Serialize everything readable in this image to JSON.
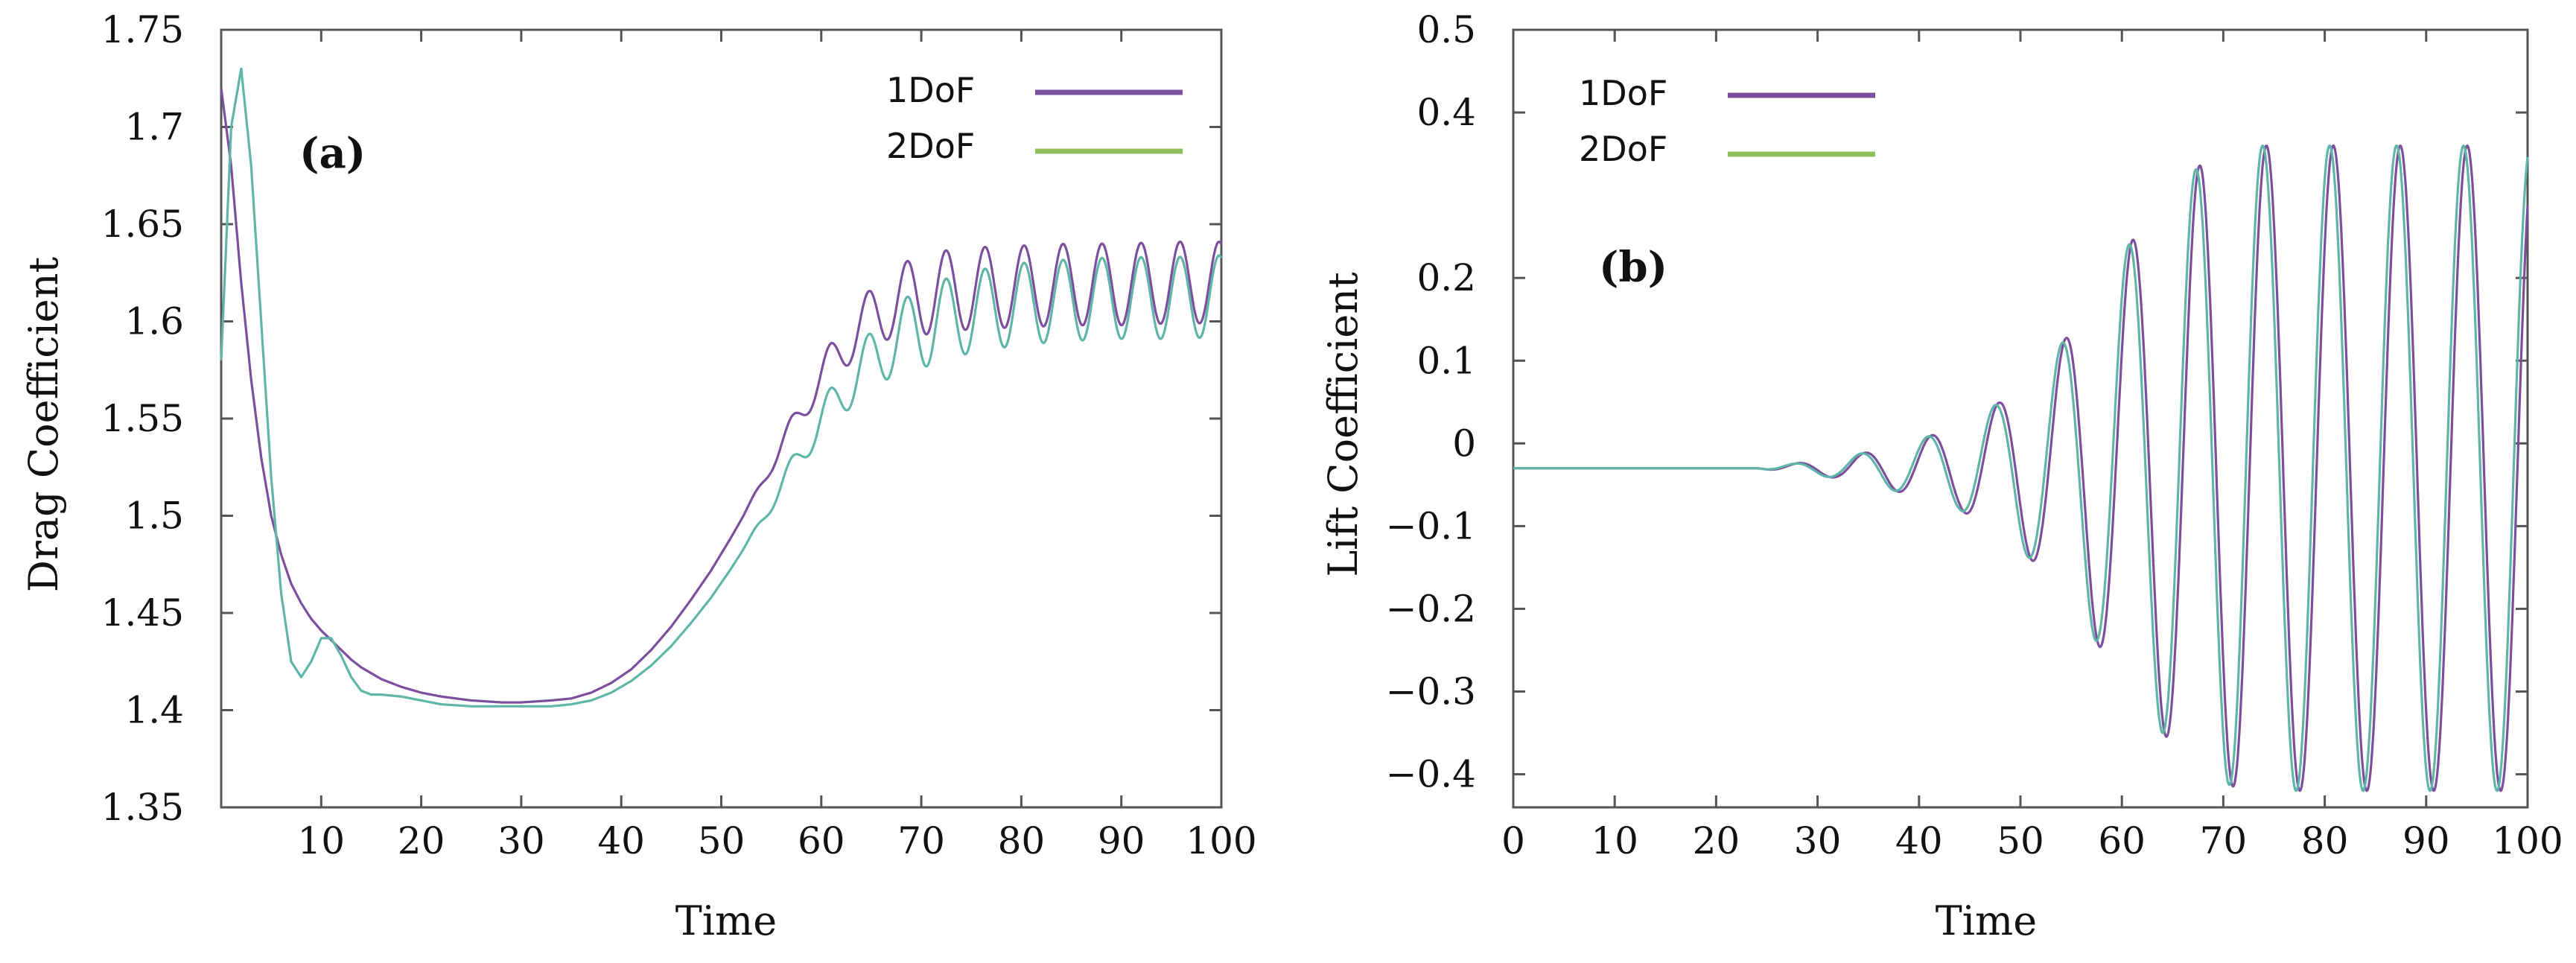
{
  "chart_data": [
    {
      "type": "line",
      "panel": "(a)",
      "title": "",
      "xlabel": "Time",
      "ylabel": "Drag Coefficient",
      "xlim": [
        0,
        100
      ],
      "ylim": [
        1.35,
        1.75
      ],
      "xticks": [
        10,
        20,
        30,
        40,
        50,
        60,
        70,
        80,
        90,
        100
      ],
      "yticks": [
        1.35,
        1.4,
        1.45,
        1.5,
        1.55,
        1.6,
        1.65,
        1.7,
        1.75
      ],
      "xtick_labels": [
        "10",
        "20",
        "30",
        "40",
        "50",
        "60",
        "70",
        "80",
        "90",
        "100"
      ],
      "ytick_labels": [
        "1.35",
        "1.4",
        "1.45",
        "1.5",
        "1.55",
        "1.6",
        "1.65",
        "1.7",
        "1.75"
      ],
      "grid": false,
      "legend_position": "top-right",
      "series": [
        {
          "name": "1DoF",
          "color": "#7b4f9d",
          "x": [
            0,
            1,
            2,
            3,
            4,
            5,
            6,
            7,
            8,
            9,
            10,
            11,
            12,
            13,
            14,
            15,
            16,
            18,
            20,
            22,
            25,
            28,
            30,
            33,
            35,
            37,
            39,
            41,
            43,
            45,
            47,
            49,
            51,
            53,
            55,
            57,
            59,
            61,
            63,
            65,
            67,
            70,
            75,
            80,
            85,
            90,
            95,
            100
          ],
          "y": [
            1.72,
            1.68,
            1.62,
            1.57,
            1.53,
            1.5,
            1.48,
            1.465,
            1.455,
            1.447,
            1.441,
            1.436,
            1.431,
            1.426,
            1.422,
            1.419,
            1.416,
            1.412,
            1.409,
            1.407,
            1.405,
            1.404,
            1.404,
            1.405,
            1.406,
            1.409,
            1.414,
            1.421,
            1.431,
            1.443,
            1.457,
            1.472,
            1.489,
            1.507,
            1.526,
            1.545,
            1.563,
            1.579,
            1.592,
            1.602,
            1.609,
            1.614,
            1.617,
            1.618,
            1.619,
            1.619,
            1.62,
            1.62
          ],
          "oscillation": {
            "start": 52,
            "amp_growth_end": 70,
            "amplitude": 0.021,
            "period": 3.9
          }
        },
        {
          "name": "2DoF",
          "color": "#8dbf5a",
          "x": [
            0,
            1,
            2,
            3,
            4,
            5,
            6,
            7,
            8,
            9,
            10,
            11,
            12,
            13,
            14,
            15,
            16,
            18,
            20,
            22,
            25,
            28,
            30,
            33,
            35,
            37,
            39,
            41,
            43,
            45,
            47,
            49,
            51,
            53,
            55,
            57,
            59,
            61,
            63,
            65,
            67,
            70,
            75,
            80,
            85,
            90,
            95,
            100
          ],
          "y": [
            1.58,
            1.7,
            1.73,
            1.68,
            1.6,
            1.52,
            1.46,
            1.425,
            1.417,
            1.425,
            1.437,
            1.437,
            1.428,
            1.417,
            1.41,
            1.408,
            1.408,
            1.407,
            1.405,
            1.403,
            1.402,
            1.402,
            1.402,
            1.402,
            1.403,
            1.405,
            1.409,
            1.415,
            1.423,
            1.433,
            1.445,
            1.458,
            1.473,
            1.489,
            1.506,
            1.524,
            1.541,
            1.556,
            1.569,
            1.58,
            1.589,
            1.597,
            1.605,
            1.609,
            1.611,
            1.612,
            1.612,
            1.613
          ],
          "oscillation": {
            "start": 52,
            "amp_growth_end": 70,
            "amplitude": 0.021,
            "period": 3.9
          }
        }
      ]
    },
    {
      "type": "line",
      "panel": "(b)",
      "title": "",
      "xlabel": "Time",
      "ylabel": "Lift Coefficient",
      "xlim": [
        0,
        100
      ],
      "ylim": [
        -0.44,
        0.5
      ],
      "yticks": [
        -0.4,
        -0.3,
        -0.2,
        -0.1,
        0,
        0.1,
        0.2,
        0.4,
        0.5
      ],
      "xticks": [
        0,
        10,
        20,
        30,
        40,
        50,
        60,
        70,
        80,
        90,
        100
      ],
      "xtick_labels": [
        "0",
        "10",
        "20",
        "30",
        "40",
        "50",
        "60",
        "70",
        "80",
        "90",
        "100"
      ],
      "ytick_labels": [
        "−0.4",
        "−0.3",
        "−0.2",
        "−0.1",
        "0",
        "0.1",
        "0.2",
        "0.4",
        "0.5"
      ],
      "grid": false,
      "legend_position": "top-left",
      "series": [
        {
          "name": "1DoF",
          "color": "#7b4f9d",
          "baseline": -0.03,
          "oscillation_period": 6.6,
          "phase_offset": 0.0,
          "envelope_t": [
            0,
            24,
            28,
            32,
            36,
            40,
            44,
            48,
            52,
            56,
            60,
            64,
            68,
            72,
            100
          ],
          "envelope_a": [
            0,
            0,
            0.006,
            0.012,
            0.022,
            0.035,
            0.05,
            0.08,
            0.12,
            0.18,
            0.26,
            0.32,
            0.37,
            0.39,
            0.39
          ]
        },
        {
          "name": "2DoF",
          "color": "#8dbf5a",
          "baseline": -0.03,
          "oscillation_period": 6.6,
          "phase_offset": 0.35,
          "envelope_t": [
            0,
            24,
            28,
            32,
            36,
            40,
            44,
            48,
            52,
            56,
            60,
            64,
            68,
            72,
            100
          ],
          "envelope_a": [
            0,
            0,
            0.006,
            0.012,
            0.022,
            0.035,
            0.05,
            0.08,
            0.12,
            0.18,
            0.26,
            0.32,
            0.37,
            0.39,
            0.39
          ]
        }
      ]
    }
  ]
}
